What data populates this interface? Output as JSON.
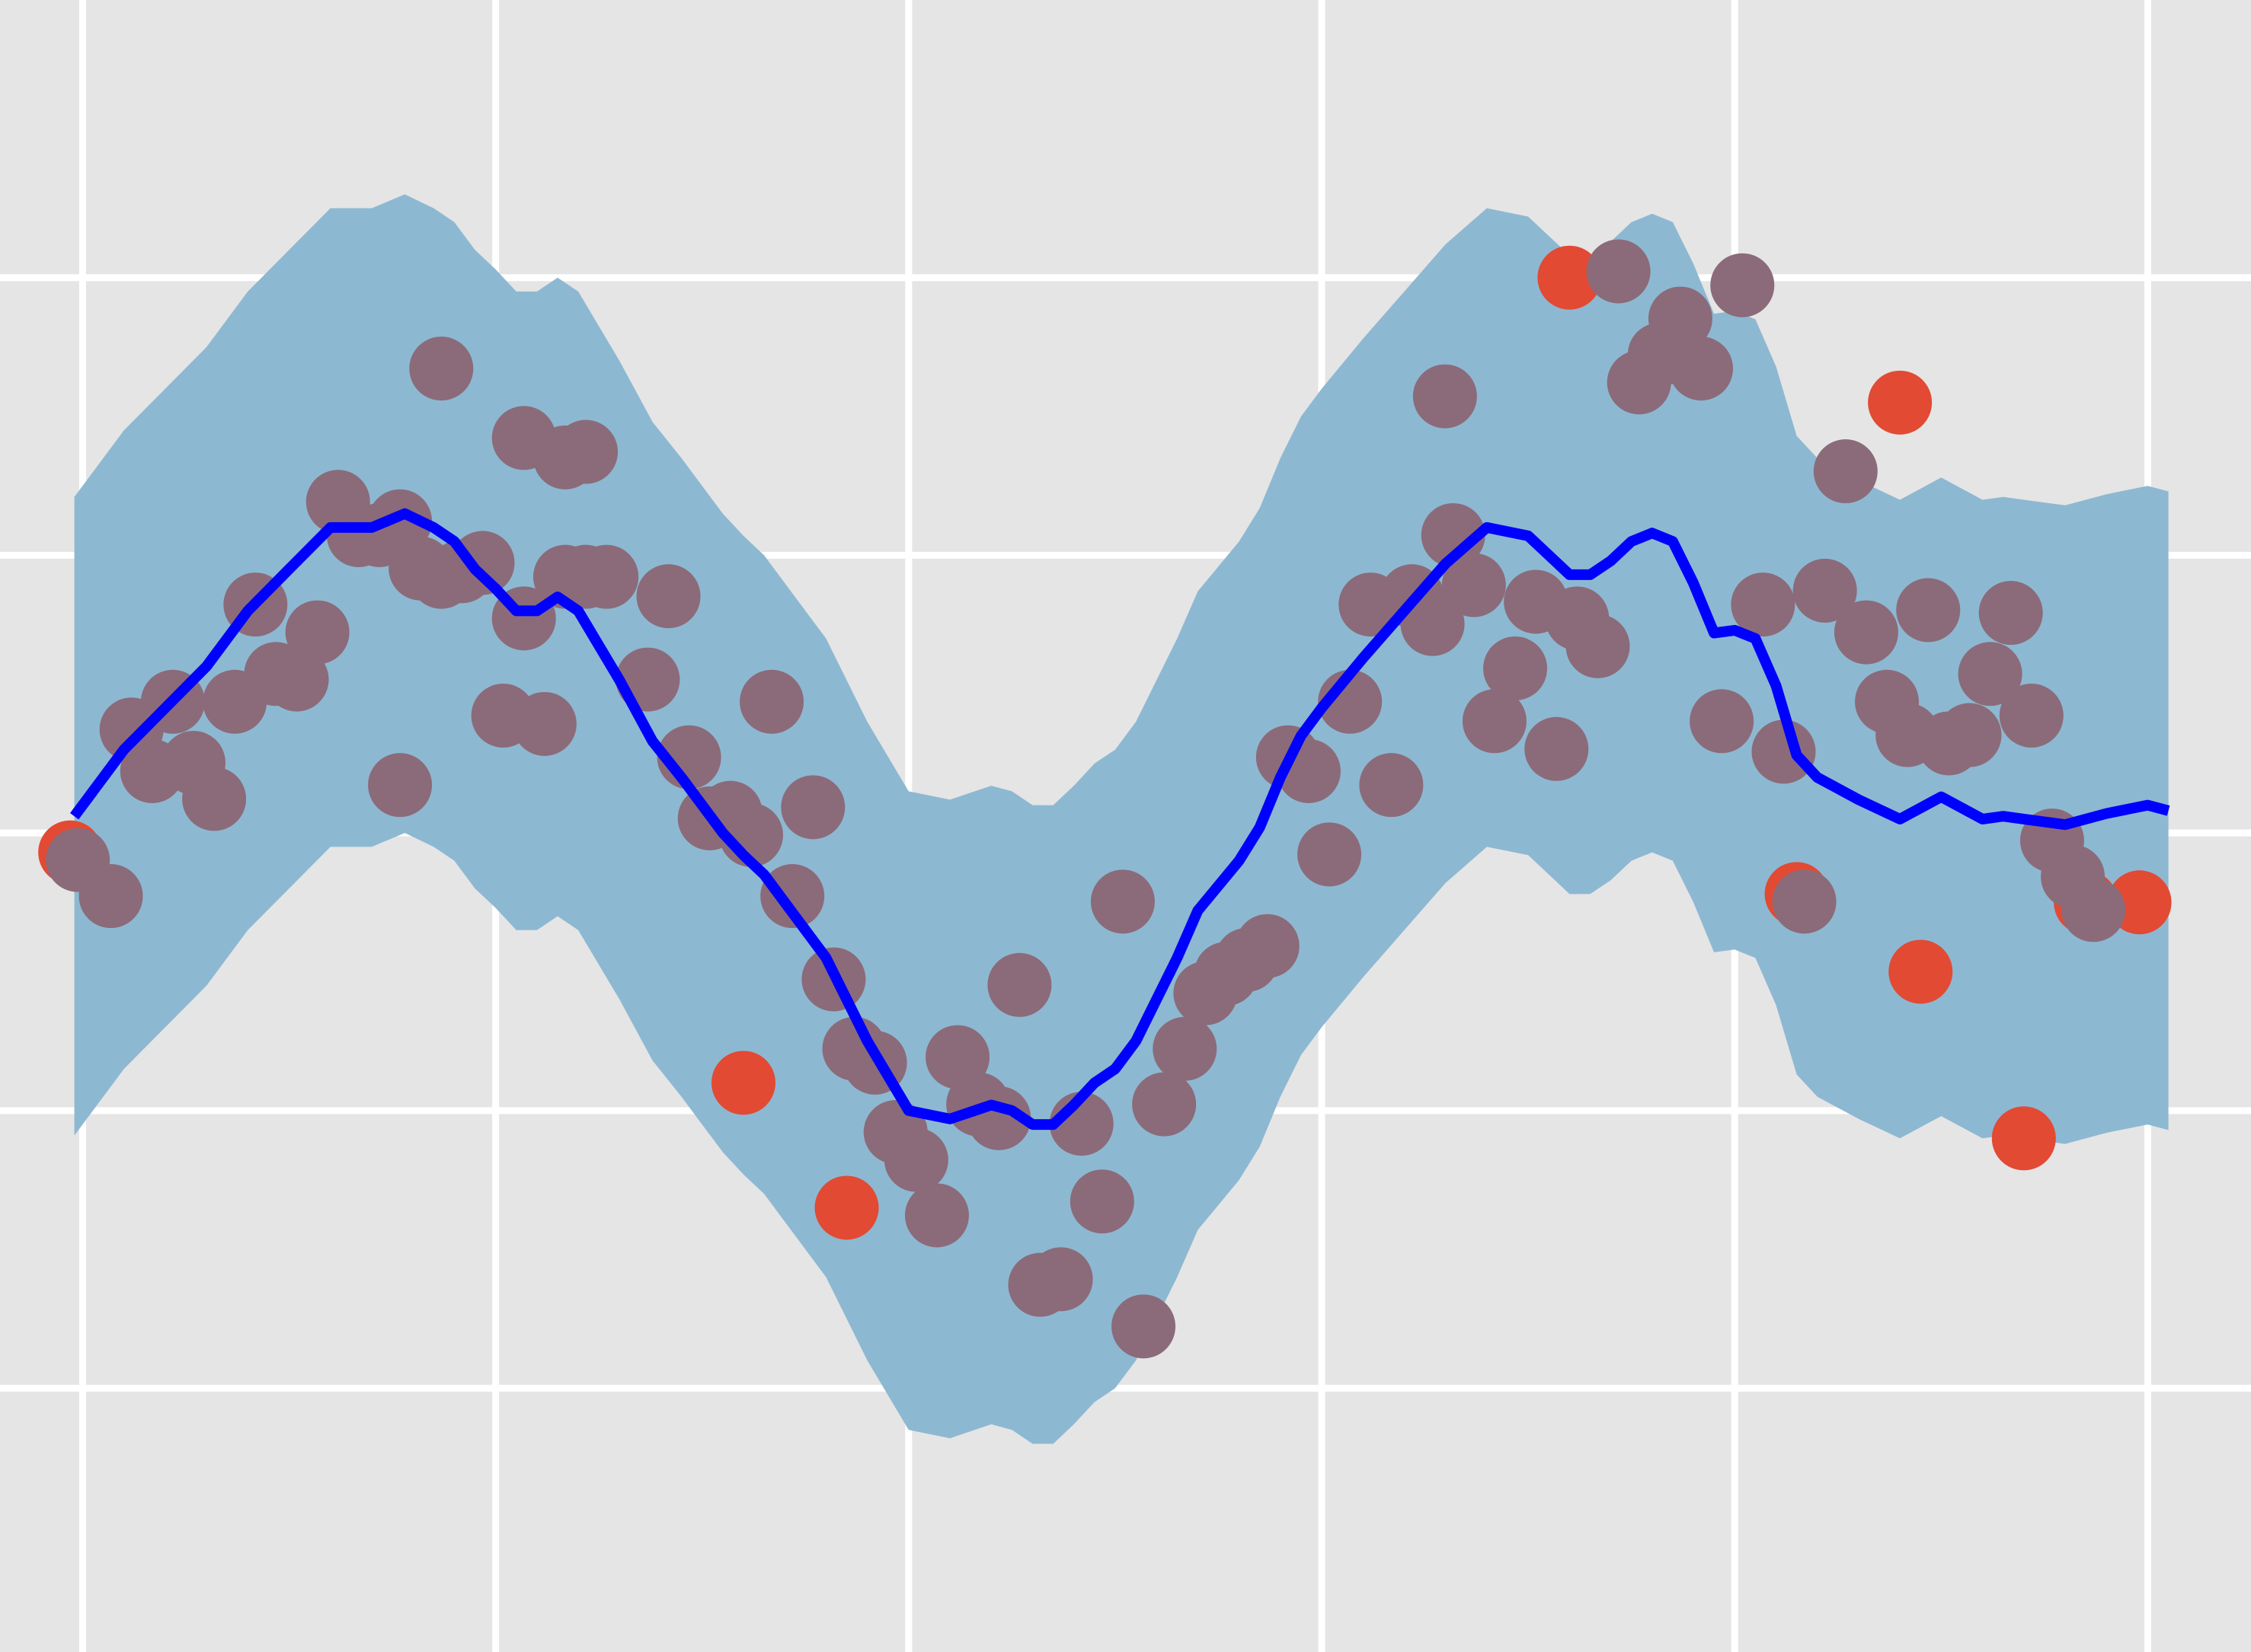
{
  "chart_data": {
    "type": "scatter",
    "title": "",
    "xlabel": "",
    "ylabel": "",
    "xlim": [
      -0.2,
      5.25
    ],
    "ylim": [
      -2.95,
      3.0
    ],
    "grid": true,
    "x_gridlines": [
      0,
      1,
      2,
      3,
      4,
      5
    ],
    "y_gridlines": [
      -2,
      -1,
      0,
      1,
      2
    ],
    "colors": {
      "background": "#e5e5e5",
      "grid": "#ffffff",
      "band": "#8db8d2",
      "mean_line": "#0000ff",
      "points": "#8b6b79",
      "outliers": "#e24a33"
    },
    "mean_curve": {
      "x": [
        -0.02,
        0.1,
        0.2,
        0.3,
        0.4,
        0.5,
        0.6,
        0.65,
        0.7,
        0.78,
        0.85,
        0.9,
        0.95,
        1.0,
        1.05,
        1.1,
        1.15,
        1.2,
        1.3,
        1.38,
        1.45,
        1.5,
        1.55,
        1.6,
        1.65,
        1.7,
        1.8,
        1.85,
        1.9,
        2.0,
        2.1,
        2.2,
        2.25,
        2.3,
        2.35,
        2.4,
        2.45,
        2.5,
        2.55,
        2.6,
        2.65,
        2.7,
        2.8,
        2.85,
        2.9,
        2.95,
        3.0,
        3.1,
        3.2,
        3.3,
        3.4,
        3.5,
        3.55,
        3.6,
        3.65,
        3.7,
        3.75,
        3.8,
        3.85,
        3.9,
        3.95,
        4.0,
        4.05,
        4.1,
        4.15,
        4.2,
        4.3,
        4.4,
        4.5,
        4.6,
        4.65,
        4.7,
        4.8,
        4.9,
        5.0,
        5.05
      ],
      "y": [
        0.06,
        0.3,
        0.45,
        0.6,
        0.8,
        0.95,
        1.1,
        1.1,
        1.1,
        1.15,
        1.1,
        1.05,
        0.95,
        0.88,
        0.8,
        0.8,
        0.85,
        0.8,
        0.55,
        0.33,
        0.2,
        0.1,
        0.0,
        -0.08,
        -0.15,
        -0.25,
        -0.45,
        -0.6,
        -0.75,
        -1.0,
        -1.03,
        -0.98,
        -1.0,
        -1.05,
        -1.05,
        -0.98,
        -0.9,
        -0.85,
        -0.75,
        -0.6,
        -0.45,
        -0.28,
        -0.1,
        0.02,
        0.2,
        0.35,
        0.45,
        0.63,
        0.8,
        0.97,
        1.1,
        1.07,
        1.0,
        0.93,
        0.93,
        0.98,
        1.05,
        1.08,
        1.05,
        0.9,
        0.72,
        0.73,
        0.7,
        0.53,
        0.28,
        0.2,
        0.12,
        0.05,
        0.13,
        0.05,
        0.06,
        0.05,
        0.03,
        0.07,
        0.1,
        0.08
      ]
    },
    "band_halfwidth": 1.15,
    "points": [
      [
        -0.03,
        -0.07
      ],
      [
        0.05,
        -0.2
      ],
      [
        0.1,
        0.4
      ],
      [
        0.15,
        0.25
      ],
      [
        0.2,
        0.5
      ],
      [
        0.25,
        0.28
      ],
      [
        0.3,
        0.15
      ],
      [
        0.35,
        0.5
      ],
      [
        0.4,
        0.85
      ],
      [
        0.45,
        0.6
      ],
      [
        0.5,
        0.58
      ],
      [
        0.55,
        0.75
      ],
      [
        0.6,
        1.22
      ],
      [
        0.65,
        1.1
      ],
      [
        0.7,
        1.1
      ],
      [
        0.75,
        1.15
      ],
      [
        0.8,
        0.98
      ],
      [
        0.85,
        0.95
      ],
      [
        0.9,
        0.97
      ],
      [
        0.95,
        1.0
      ],
      [
        1.0,
        0.45
      ],
      [
        1.05,
        0.8
      ],
      [
        1.1,
        0.42
      ],
      [
        1.15,
        0.95
      ],
      [
        1.2,
        0.95
      ],
      [
        0.75,
        0.2
      ],
      [
        0.85,
        1.7
      ],
      [
        1.05,
        1.45
      ],
      [
        1.15,
        1.38
      ],
      [
        1.2,
        1.4
      ],
      [
        1.25,
        0.95
      ],
      [
        1.35,
        0.58
      ],
      [
        1.4,
        0.88
      ],
      [
        1.45,
        0.3
      ],
      [
        1.5,
        0.08
      ],
      [
        1.55,
        0.1
      ],
      [
        1.6,
        0.02
      ],
      [
        1.65,
        0.5
      ],
      [
        1.7,
        -0.2
      ],
      [
        1.75,
        0.12
      ],
      [
        1.8,
        -0.5
      ],
      [
        1.85,
        -0.75
      ],
      [
        1.9,
        -0.8
      ],
      [
        1.95,
        -1.05
      ],
      [
        2.0,
        -1.15
      ],
      [
        2.05,
        -1.35
      ],
      [
        2.1,
        -0.78
      ],
      [
        2.15,
        -0.95
      ],
      [
        2.2,
        -1.0
      ],
      [
        2.25,
        -0.52
      ],
      [
        2.3,
        -1.6
      ],
      [
        2.35,
        -1.58
      ],
      [
        2.4,
        -1.02
      ],
      [
        2.45,
        -1.3
      ],
      [
        2.5,
        -0.22
      ],
      [
        2.55,
        -1.75
      ],
      [
        2.6,
        -0.95
      ],
      [
        2.65,
        -0.75
      ],
      [
        2.7,
        -0.55
      ],
      [
        2.75,
        -0.48
      ],
      [
        2.8,
        -0.43
      ],
      [
        2.85,
        -0.38
      ],
      [
        2.9,
        0.3
      ],
      [
        2.95,
        0.25
      ],
      [
        3.0,
        -0.05
      ],
      [
        3.05,
        0.5
      ],
      [
        3.1,
        0.85
      ],
      [
        3.15,
        0.2
      ],
      [
        3.2,
        0.88
      ],
      [
        3.25,
        0.78
      ],
      [
        3.3,
        1.1
      ],
      [
        3.35,
        0.92
      ],
      [
        3.4,
        0.43
      ],
      [
        3.45,
        0.62
      ],
      [
        3.5,
        0.86
      ],
      [
        3.55,
        0.33
      ],
      [
        3.6,
        0.8
      ],
      [
        3.65,
        0.7
      ],
      [
        3.7,
        2.05
      ],
      [
        3.75,
        1.65
      ],
      [
        3.8,
        1.75
      ],
      [
        3.85,
        1.88
      ],
      [
        3.9,
        1.7
      ],
      [
        3.95,
        0.43
      ],
      [
        4.0,
        2.0
      ],
      [
        4.05,
        0.85
      ],
      [
        4.1,
        0.32
      ],
      [
        4.15,
        -0.22
      ],
      [
        4.2,
        0.9
      ],
      [
        4.25,
        1.33
      ],
      [
        4.3,
        0.75
      ],
      [
        4.35,
        0.5
      ],
      [
        4.4,
        0.38
      ],
      [
        4.45,
        0.83
      ],
      [
        4.5,
        0.35
      ],
      [
        4.55,
        0.38
      ],
      [
        4.6,
        0.6
      ],
      [
        4.65,
        0.82
      ],
      [
        4.7,
        0.45
      ],
      [
        4.75,
        0.0
      ],
      [
        4.8,
        -0.13
      ],
      [
        4.85,
        -0.25
      ],
      [
        3.28,
        1.6
      ]
    ],
    "outliers": [
      [
        -0.03,
        -0.07
      ],
      [
        1.6,
        -0.9
      ],
      [
        1.85,
        -1.35
      ],
      [
        3.6,
        2.0
      ],
      [
        4.15,
        -0.22
      ],
      [
        4.4,
        1.55
      ],
      [
        4.45,
        -0.5
      ],
      [
        4.7,
        -1.1
      ],
      [
        4.98,
        -0.25
      ],
      [
        4.85,
        -0.25
      ]
    ]
  }
}
